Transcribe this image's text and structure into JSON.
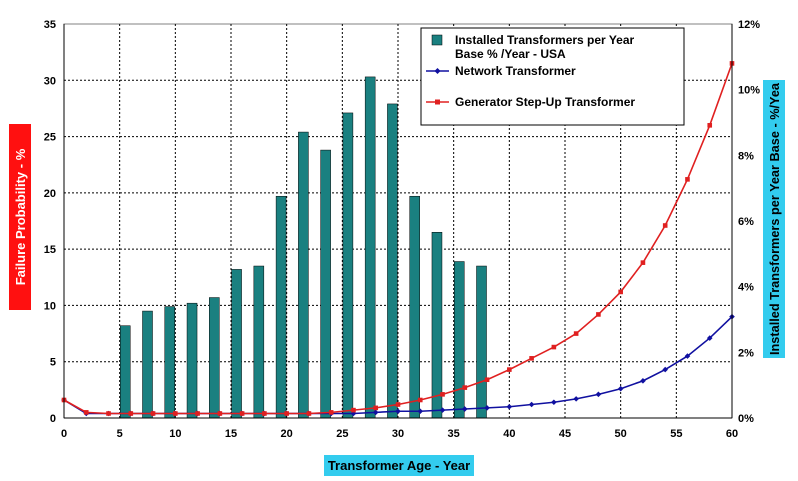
{
  "chart_data": {
    "type": "bar+line",
    "title": "",
    "xlabel": "Transformer Age - Year",
    "ylabel_left": "Failure Probability - %",
    "ylabel_right": "Installed Transformers per Year Base - %/Yea",
    "xlim": [
      0,
      60
    ],
    "ylim_left": [
      0,
      35
    ],
    "ylim_right": [
      0,
      12
    ],
    "x_ticks": [
      "0",
      "5",
      "10",
      "15",
      "20",
      "25",
      "30",
      "35",
      "40",
      "45",
      "50",
      "55",
      "60"
    ],
    "y_left_ticks": [
      "0",
      "5",
      "10",
      "15",
      "20",
      "25",
      "30",
      "35"
    ],
    "y_right_ticks": [
      "0%",
      "2%",
      "4%",
      "6%",
      "8%",
      "10%",
      "12%"
    ],
    "grid": true,
    "legend_position": "top-right",
    "bars": {
      "name_line1": "Installed Transformers per Year",
      "name_line2": "Base % /Year - USA",
      "color": "#1a8080",
      "axis": "left",
      "x": [
        5.5,
        7.5,
        9.5,
        11.5,
        13.5,
        15.5,
        17.5,
        19.5,
        21.5,
        23.5,
        25.5,
        27.5,
        29.5,
        31.5,
        33.5,
        35.5,
        37.5
      ],
      "values": [
        8.2,
        9.5,
        9.9,
        10.2,
        10.7,
        13.2,
        13.5,
        19.7,
        25.4,
        23.8,
        27.1,
        30.3,
        27.9,
        19.7,
        16.5,
        13.9,
        13.5
      ]
    },
    "series": [
      {
        "name": "Network Transformer",
        "color": "#1010a0",
        "marker": "diamond",
        "axis": "left",
        "x": [
          0,
          2,
          4,
          6,
          8,
          10,
          12,
          14,
          16,
          18,
          20,
          22,
          24,
          26,
          28,
          30,
          32,
          34,
          36,
          38,
          40,
          42,
          44,
          46,
          48,
          50,
          52,
          54,
          56,
          58,
          60
        ],
        "values": [
          1.6,
          0.4,
          0.4,
          0.4,
          0.4,
          0.4,
          0.4,
          0.4,
          0.4,
          0.4,
          0.4,
          0.4,
          0.4,
          0.4,
          0.5,
          0.6,
          0.6,
          0.7,
          0.8,
          0.9,
          1.0,
          1.2,
          1.4,
          1.7,
          2.1,
          2.6,
          3.3,
          4.3,
          5.5,
          7.1,
          9.0
        ]
      },
      {
        "name": "Generator Step-Up Transformer",
        "color": "#e02020",
        "marker": "square",
        "axis": "left",
        "x": [
          0,
          2,
          4,
          6,
          8,
          10,
          12,
          14,
          16,
          18,
          20,
          22,
          24,
          26,
          28,
          30,
          32,
          34,
          36,
          38,
          40,
          42,
          44,
          46,
          48,
          50,
          52,
          54,
          56,
          58,
          60
        ],
        "values": [
          1.6,
          0.5,
          0.4,
          0.4,
          0.4,
          0.4,
          0.4,
          0.4,
          0.4,
          0.4,
          0.4,
          0.4,
          0.5,
          0.7,
          0.9,
          1.2,
          1.6,
          2.1,
          2.7,
          3.4,
          4.3,
          5.3,
          6.3,
          7.5,
          9.2,
          11.2,
          13.8,
          17.1,
          21.2,
          26.0,
          31.5
        ]
      }
    ]
  }
}
